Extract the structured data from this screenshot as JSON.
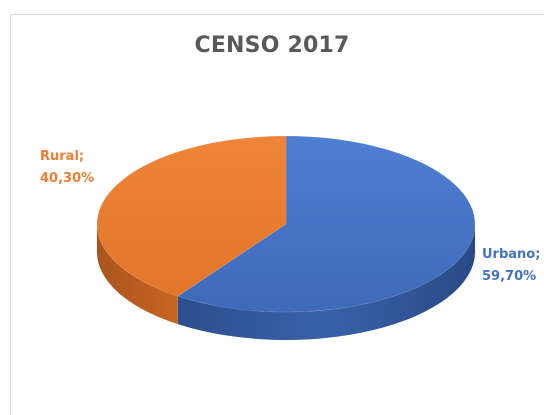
{
  "chart_data": {
    "type": "pie",
    "title": "CENSO 2017",
    "slices": [
      {
        "name": "Urbano",
        "value": 59.7,
        "label_line1": "Urbano;",
        "label_line2": "59,70%",
        "color": "#4472c4",
        "side_color": "#2f5597"
      },
      {
        "name": "Rural",
        "value": 40.3,
        "label_line1": "Rural;",
        "label_line2": "40,30%",
        "color": "#ed7d31",
        "side_color": "#b45a1c"
      }
    ],
    "legend": "none",
    "style": "3d"
  }
}
